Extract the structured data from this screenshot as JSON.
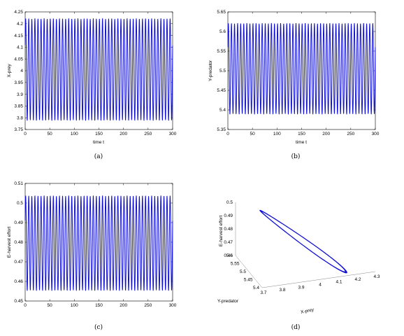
{
  "figure": {
    "captions": [
      "(a)",
      "(b)",
      "(c)",
      "(d)"
    ],
    "line_color": "#1010d0"
  },
  "chart_data": [
    {
      "type": "line",
      "panel": "a",
      "xlabel": "time t",
      "ylabel": "X-prey",
      "xlim": [
        0,
        300
      ],
      "ylim": [
        3.75,
        4.25
      ],
      "xticks": [
        0,
        50,
        100,
        150,
        200,
        250,
        300
      ],
      "yticks": [
        3.75,
        3.8,
        3.85,
        3.9,
        3.95,
        4,
        4.05,
        4.1,
        4.15,
        4.2,
        4.25
      ],
      "ytick_labels": [
        "3.75",
        "3.8",
        "3.85",
        "3.9",
        "3.95",
        "4",
        "4.05",
        "4.1",
        "4.15",
        "4.2",
        "4.25"
      ],
      "series": [
        {
          "oscillation": {
            "cycles": 48,
            "min": 3.79,
            "max": 4.22,
            "t_start": 0,
            "t_end": 300
          }
        }
      ]
    },
    {
      "type": "line",
      "panel": "b",
      "xlabel": "time t",
      "ylabel": "Y-predator",
      "xlim": [
        0,
        300
      ],
      "ylim": [
        5.35,
        5.65
      ],
      "xticks": [
        0,
        50,
        100,
        150,
        200,
        250,
        300
      ],
      "yticks": [
        5.35,
        5.4,
        5.45,
        5.5,
        5.55,
        5.6,
        5.65
      ],
      "ytick_labels": [
        "5.35",
        "5.4",
        "5.45",
        "5.5",
        "5.55",
        "5.6",
        "5.65"
      ],
      "series": [
        {
          "oscillation": {
            "cycles": 48,
            "min": 5.39,
            "max": 5.62,
            "t_start": 0,
            "t_end": 300
          }
        }
      ]
    },
    {
      "type": "line",
      "panel": "c",
      "xlabel": "",
      "ylabel": "E-harvest effort",
      "xlim": [
        0,
        300
      ],
      "ylim": [
        0.45,
        0.51
      ],
      "xticks": [
        0,
        50,
        100,
        150,
        200,
        250,
        300
      ],
      "yticks": [
        0.45,
        0.46,
        0.47,
        0.48,
        0.49,
        0.5,
        0.51
      ],
      "ytick_labels": [
        "0.45",
        "0.46",
        "0.47",
        "0.48",
        "0.49",
        "0.5",
        "0.51"
      ],
      "series": [
        {
          "oscillation": {
            "cycles": 48,
            "min": 0.4555,
            "max": 0.5035,
            "t_start": 0,
            "t_end": 300
          }
        }
      ]
    },
    {
      "type": "line3d",
      "panel": "d",
      "xlabel": "X-prey",
      "ylabel": "Y-predator",
      "zlabel": "E-harvest effort",
      "xticks": [
        "3.7",
        "3.8",
        "3.9",
        "4",
        "4.1",
        "4.2",
        "4.3"
      ],
      "yticks": [
        "5.4",
        "5.45",
        "5.5",
        "5.55",
        "5.6"
      ],
      "zticks": [
        "0.46",
        "0.47",
        "0.48",
        "0.49",
        "0.5"
      ],
      "limit_cycle": {
        "x_range": [
          3.79,
          4.22
        ],
        "y_range": [
          5.39,
          5.62
        ],
        "z_range": [
          0.4555,
          0.5035
        ]
      }
    }
  ]
}
